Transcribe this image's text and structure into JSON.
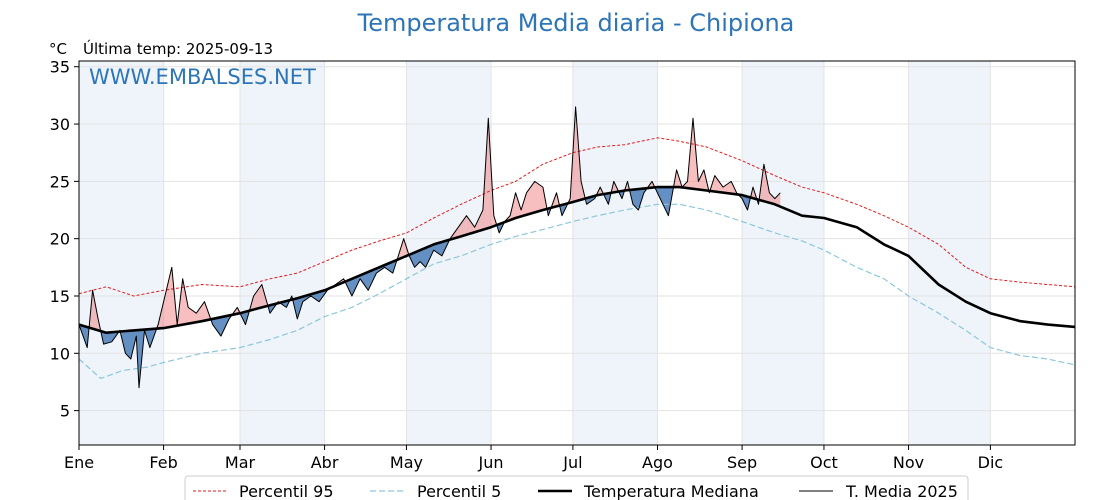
{
  "chart_data": {
    "type": "line",
    "title": "Temperatura Media diaria - Chipiona",
    "unit_label": "°C",
    "last_temp_label": "Última temp: 2025-09-13",
    "watermark": "WWW.EMBALSES.NET",
    "ylim": [
      2,
      35.5
    ],
    "xlim": [
      0,
      365
    ],
    "yticks": [
      5,
      10,
      15,
      20,
      25,
      30,
      35
    ],
    "months": [
      {
        "label": "Ene",
        "day": 0
      },
      {
        "label": "Feb",
        "day": 31
      },
      {
        "label": "Mar",
        "day": 59
      },
      {
        "label": "Abr",
        "day": 90
      },
      {
        "label": "May",
        "day": 120
      },
      {
        "label": "Jun",
        "day": 151
      },
      {
        "label": "Jul",
        "day": 181
      },
      {
        "label": "Ago",
        "day": 212
      },
      {
        "label": "Sep",
        "day": 243
      },
      {
        "label": "Oct",
        "day": 273
      },
      {
        "label": "Nov",
        "day": 304
      },
      {
        "label": "Dic",
        "day": 334
      }
    ],
    "shaded_months": [
      [
        0,
        31
      ],
      [
        59,
        90
      ],
      [
        120,
        151
      ],
      [
        181,
        212
      ],
      [
        243,
        273
      ],
      [
        304,
        334
      ]
    ],
    "grid": true,
    "legend_position": "bottom",
    "colors": {
      "p95": "#e31a1c",
      "p5": "#8ec7dc",
      "median": "#000000",
      "current": "#000000",
      "above_fill": "#f08080",
      "below_fill": "#4a7db8",
      "month_band": "#eef4fa"
    },
    "series": [
      {
        "name": "Percentil 95",
        "key": "p95",
        "points": [
          [
            0,
            15.2
          ],
          [
            10,
            15.8
          ],
          [
            20,
            15.0
          ],
          [
            31,
            15.5
          ],
          [
            45,
            16.0
          ],
          [
            59,
            15.8
          ],
          [
            70,
            16.5
          ],
          [
            80,
            17.0
          ],
          [
            90,
            18.0
          ],
          [
            100,
            19.0
          ],
          [
            110,
            19.8
          ],
          [
            120,
            20.5
          ],
          [
            130,
            21.8
          ],
          [
            140,
            23.0
          ],
          [
            151,
            24.2
          ],
          [
            160,
            25.0
          ],
          [
            170,
            26.5
          ],
          [
            181,
            27.5
          ],
          [
            190,
            28.0
          ],
          [
            200,
            28.2
          ],
          [
            212,
            28.8
          ],
          [
            220,
            28.5
          ],
          [
            230,
            28.0
          ],
          [
            243,
            26.8
          ],
          [
            255,
            25.5
          ],
          [
            265,
            24.5
          ],
          [
            273,
            24.0
          ],
          [
            285,
            23.0
          ],
          [
            295,
            22.0
          ],
          [
            304,
            21.0
          ],
          [
            315,
            19.5
          ],
          [
            325,
            17.5
          ],
          [
            334,
            16.5
          ],
          [
            345,
            16.2
          ],
          [
            355,
            16.0
          ],
          [
            365,
            15.8
          ]
        ]
      },
      {
        "name": "Percentil 5",
        "key": "p5",
        "points": [
          [
            0,
            9.5
          ],
          [
            8,
            7.8
          ],
          [
            16,
            8.5
          ],
          [
            25,
            8.8
          ],
          [
            31,
            9.2
          ],
          [
            45,
            10.0
          ],
          [
            59,
            10.5
          ],
          [
            70,
            11.2
          ],
          [
            80,
            12.0
          ],
          [
            90,
            13.2
          ],
          [
            100,
            14.0
          ],
          [
            110,
            15.2
          ],
          [
            120,
            16.5
          ],
          [
            130,
            17.8
          ],
          [
            140,
            18.5
          ],
          [
            151,
            19.5
          ],
          [
            160,
            20.2
          ],
          [
            170,
            20.8
          ],
          [
            181,
            21.5
          ],
          [
            190,
            22.0
          ],
          [
            200,
            22.5
          ],
          [
            212,
            23.0
          ],
          [
            220,
            23.0
          ],
          [
            230,
            22.5
          ],
          [
            243,
            21.5
          ],
          [
            255,
            20.5
          ],
          [
            265,
            19.8
          ],
          [
            273,
            19.0
          ],
          [
            285,
            17.5
          ],
          [
            295,
            16.5
          ],
          [
            304,
            15.0
          ],
          [
            315,
            13.5
          ],
          [
            325,
            12.0
          ],
          [
            334,
            10.5
          ],
          [
            345,
            9.8
          ],
          [
            355,
            9.5
          ],
          [
            365,
            9.0
          ]
        ]
      },
      {
        "name": "Temperatura Mediana",
        "key": "median",
        "points": [
          [
            0,
            12.5
          ],
          [
            10,
            11.8
          ],
          [
            20,
            12.0
          ],
          [
            31,
            12.2
          ],
          [
            45,
            12.8
          ],
          [
            59,
            13.5
          ],
          [
            70,
            14.2
          ],
          [
            80,
            14.8
          ],
          [
            90,
            15.5
          ],
          [
            100,
            16.5
          ],
          [
            110,
            17.5
          ],
          [
            120,
            18.5
          ],
          [
            130,
            19.5
          ],
          [
            140,
            20.2
          ],
          [
            151,
            21.0
          ],
          [
            160,
            21.8
          ],
          [
            170,
            22.5
          ],
          [
            181,
            23.2
          ],
          [
            190,
            23.8
          ],
          [
            200,
            24.2
          ],
          [
            212,
            24.5
          ],
          [
            220,
            24.5
          ],
          [
            230,
            24.2
          ],
          [
            243,
            23.8
          ],
          [
            255,
            23.0
          ],
          [
            265,
            22.0
          ],
          [
            273,
            21.8
          ],
          [
            285,
            21.0
          ],
          [
            295,
            19.5
          ],
          [
            304,
            18.5
          ],
          [
            315,
            16.0
          ],
          [
            325,
            14.5
          ],
          [
            334,
            13.5
          ],
          [
            345,
            12.8
          ],
          [
            355,
            12.5
          ],
          [
            365,
            12.3
          ]
        ]
      },
      {
        "name": "T. Media 2025",
        "key": "current",
        "points": [
          [
            0,
            12.5
          ],
          [
            3,
            10.5
          ],
          [
            5,
            15.5
          ],
          [
            7,
            13.0
          ],
          [
            9,
            10.8
          ],
          [
            12,
            11.0
          ],
          [
            15,
            12.0
          ],
          [
            17,
            10.0
          ],
          [
            19,
            9.5
          ],
          [
            21,
            11.5
          ],
          [
            22,
            7.0
          ],
          [
            24,
            12.0
          ],
          [
            26,
            10.5
          ],
          [
            29,
            12.5
          ],
          [
            31,
            14.5
          ],
          [
            34,
            17.5
          ],
          [
            36,
            12.5
          ],
          [
            38,
            16.5
          ],
          [
            40,
            14.0
          ],
          [
            43,
            13.5
          ],
          [
            46,
            14.5
          ],
          [
            49,
            12.5
          ],
          [
            52,
            11.5
          ],
          [
            55,
            13.0
          ],
          [
            58,
            14.0
          ],
          [
            61,
            12.5
          ],
          [
            64,
            15.0
          ],
          [
            67,
            16.0
          ],
          [
            70,
            13.5
          ],
          [
            73,
            14.5
          ],
          [
            76,
            14.0
          ],
          [
            78,
            15.0
          ],
          [
            80,
            13.0
          ],
          [
            82,
            14.5
          ],
          [
            85,
            15.0
          ],
          [
            88,
            14.5
          ],
          [
            91,
            15.5
          ],
          [
            94,
            16.0
          ],
          [
            97,
            16.5
          ],
          [
            100,
            15.0
          ],
          [
            103,
            16.5
          ],
          [
            106,
            15.5
          ],
          [
            109,
            17.0
          ],
          [
            112,
            17.5
          ],
          [
            115,
            17.0
          ],
          [
            117,
            18.5
          ],
          [
            119,
            20.0
          ],
          [
            121,
            18.5
          ],
          [
            123,
            17.5
          ],
          [
            125,
            18.0
          ],
          [
            127,
            17.5
          ],
          [
            130,
            19.0
          ],
          [
            133,
            18.5
          ],
          [
            136,
            20.0
          ],
          [
            139,
            21.0
          ],
          [
            142,
            22.0
          ],
          [
            145,
            21.0
          ],
          [
            148,
            22.5
          ],
          [
            150,
            30.5
          ],
          [
            152,
            22.0
          ],
          [
            154,
            20.5
          ],
          [
            156,
            21.5
          ],
          [
            158,
            22.0
          ],
          [
            160,
            24.0
          ],
          [
            162,
            22.5
          ],
          [
            164,
            24.0
          ],
          [
            167,
            25.0
          ],
          [
            170,
            24.5
          ],
          [
            172,
            22.0
          ],
          [
            175,
            24.0
          ],
          [
            177,
            22.0
          ],
          [
            180,
            23.5
          ],
          [
            182,
            31.5
          ],
          [
            184,
            25.0
          ],
          [
            186,
            23.0
          ],
          [
            189,
            23.5
          ],
          [
            191,
            24.5
          ],
          [
            194,
            23.0
          ],
          [
            196,
            25.0
          ],
          [
            199,
            23.5
          ],
          [
            201,
            25.0
          ],
          [
            203,
            23.0
          ],
          [
            205,
            22.5
          ],
          [
            207,
            24.0
          ],
          [
            210,
            25.0
          ],
          [
            213,
            23.5
          ],
          [
            216,
            22.0
          ],
          [
            219,
            26.0
          ],
          [
            221,
            24.5
          ],
          [
            223,
            25.0
          ],
          [
            225,
            30.5
          ],
          [
            227,
            25.0
          ],
          [
            229,
            26.0
          ],
          [
            231,
            24.0
          ],
          [
            233,
            25.5
          ],
          [
            236,
            24.5
          ],
          [
            239,
            25.0
          ],
          [
            241,
            24.0
          ],
          [
            243,
            23.5
          ],
          [
            245,
            22.5
          ],
          [
            247,
            24.5
          ],
          [
            249,
            23.0
          ],
          [
            251,
            26.5
          ],
          [
            253,
            24.0
          ],
          [
            255,
            23.5
          ],
          [
            257,
            24.0
          ]
        ]
      }
    ]
  },
  "legend": [
    {
      "label": "Percentil 95",
      "key": "p95"
    },
    {
      "label": "Percentil 5",
      "key": "p5"
    },
    {
      "label": "Temperatura Mediana",
      "key": "median"
    },
    {
      "label": "T. Media 2025",
      "key": "current"
    }
  ]
}
